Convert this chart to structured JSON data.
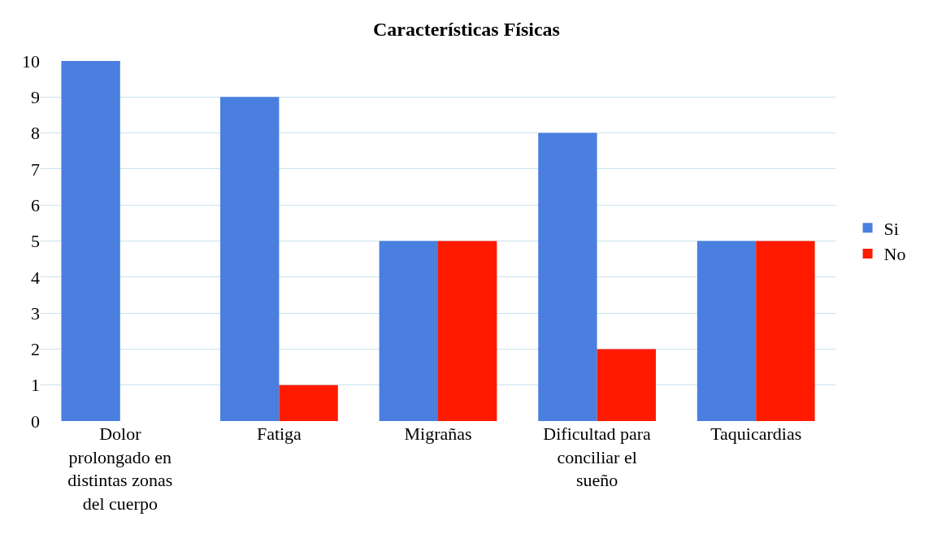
{
  "chart_data": {
    "type": "bar",
    "title": "Características Físicas",
    "categories": [
      "Dolor prolongado en distintas zonas del cuerpo",
      "Fatiga",
      "Migrañas",
      "Dificultad para conciliar el sueño",
      "Taquicardias"
    ],
    "series": [
      {
        "name": "Si",
        "color": "#4a7fe0",
        "values": [
          10,
          9,
          5,
          8,
          5
        ]
      },
      {
        "name": "No",
        "color": "#ff1a00",
        "values": [
          0,
          1,
          5,
          2,
          5
        ]
      }
    ],
    "ylim": [
      0,
      10
    ],
    "yticks": [
      0,
      1,
      2,
      3,
      4,
      5,
      6,
      7,
      8,
      9,
      10
    ],
    "grid": "y",
    "legend": "right"
  }
}
